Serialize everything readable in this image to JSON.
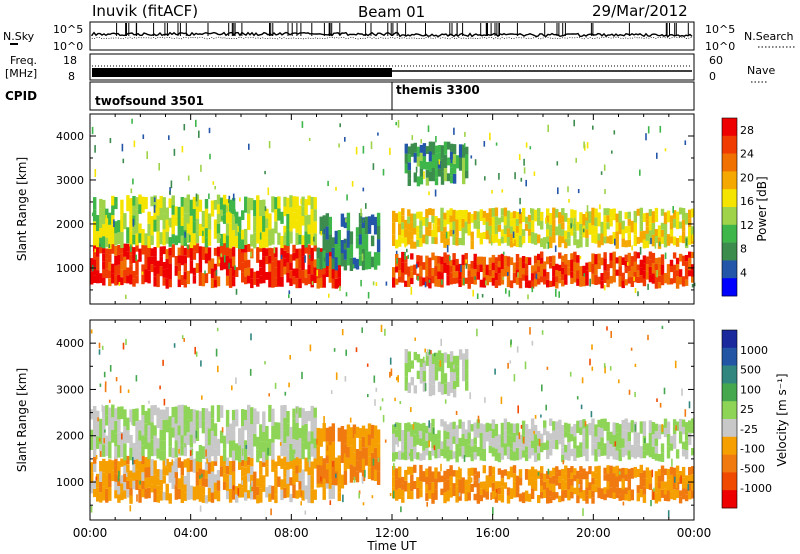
{
  "header": {
    "station": "Inuvik (fitACF)",
    "beam": "Beam 01",
    "date": "29/Mar/2012"
  },
  "noise_panel": {
    "left_label": "N.Sky",
    "right_label": "N.Search",
    "y_ticks_left": [
      "10^5",
      "10^0"
    ],
    "y_ticks_right": [
      "10^5",
      "10^0"
    ]
  },
  "freq_panel": {
    "left_label_1": "Freq.",
    "left_label_2": "[MHz]",
    "left_ticks": [
      "18",
      "8"
    ],
    "right_label": "Nave",
    "right_ticks": [
      "60",
      "0"
    ]
  },
  "cpid_panel": {
    "label": "CPID",
    "modes": [
      {
        "name": "twofsound 3501",
        "start_hour": 0
      },
      {
        "name": "themis 3300",
        "start_hour": 12
      }
    ]
  },
  "x_axis": {
    "label": "Time UT",
    "ticks": [
      "00:00",
      "04:00",
      "08:00",
      "12:00",
      "16:00",
      "20:00",
      "00:00"
    ]
  },
  "colors": {
    "power_scale": [
      "#0000ff",
      "#2356a8",
      "#3c8c4e",
      "#3fb64a",
      "#9ed34a",
      "#f5e400",
      "#f5a800",
      "#f07000",
      "#f03c00",
      "#ee0000"
    ],
    "velocity_scale": [
      "#1a2a9c",
      "#2355a5",
      "#31867f",
      "#46a84e",
      "#8ed457",
      "#c8c8c8",
      "#f5a000",
      "#f07a10",
      "#f04a00",
      "#ee0000"
    ]
  },
  "chart_data": [
    {
      "type": "heatmap",
      "title": "",
      "quantity": "power",
      "ylabel": "Slant Range [km]",
      "xlabel": "Time UT",
      "xlim": [
        0,
        24
      ],
      "ylim": [
        180,
        4500
      ],
      "y_ticks": [
        1000,
        2000,
        3000,
        4000
      ],
      "colorbar": {
        "label": "Power [dB]",
        "ticks": [
          "4",
          "8",
          "12",
          "16",
          "20",
          "24",
          "28"
        ],
        "range": [
          0,
          30
        ]
      },
      "bands": [
        {
          "t_start": 0,
          "t_end": 10,
          "range_start": 600,
          "range_end": 1500,
          "value": 27
        },
        {
          "t_start": 0,
          "t_end": 9,
          "range_start": 1500,
          "range_end": 2600,
          "value": 14
        },
        {
          "t_start": 9,
          "t_end": 11.5,
          "range_start": 1000,
          "range_end": 2200,
          "value": 8
        },
        {
          "t_start": 12,
          "t_end": 24,
          "range_start": 600,
          "range_end": 1300,
          "value": 25
        },
        {
          "t_start": 12,
          "t_end": 24,
          "range_start": 1500,
          "range_end": 2300,
          "value": 17
        },
        {
          "t_start": 12.5,
          "t_end": 15,
          "range_start": 2900,
          "range_end": 3800,
          "value": 9
        }
      ]
    },
    {
      "type": "heatmap",
      "title": "",
      "quantity": "velocity",
      "ylabel": "Slant Range [km]",
      "xlabel": "Time UT",
      "xlim": [
        0,
        24
      ],
      "ylim": [
        180,
        4500
      ],
      "y_ticks": [
        1000,
        2000,
        3000,
        4000
      ],
      "colorbar": {
        "label": "Velocity [m s⁻¹]",
        "ticks": [
          "1000",
          "500",
          "100",
          "25",
          "-25",
          "-100",
          "-500",
          "-1000"
        ],
        "range": [
          -1000,
          1000
        ]
      },
      "bands": [
        {
          "t_start": 0,
          "t_end": 10,
          "range_start": 600,
          "range_end": 1500,
          "value": -300
        },
        {
          "t_start": 0,
          "t_end": 9,
          "range_start": 1500,
          "range_end": 2600,
          "value": 0
        },
        {
          "t_start": 9,
          "t_end": 11.5,
          "range_start": 1000,
          "range_end": 2200,
          "value": -400
        },
        {
          "t_start": 12,
          "t_end": 24,
          "range_start": 600,
          "range_end": 1300,
          "value": -400
        },
        {
          "t_start": 12,
          "t_end": 24,
          "range_start": 1500,
          "range_end": 2300,
          "value": 0
        },
        {
          "t_start": 12.5,
          "t_end": 15,
          "range_start": 2900,
          "range_end": 3800,
          "value": 0
        }
      ]
    }
  ]
}
